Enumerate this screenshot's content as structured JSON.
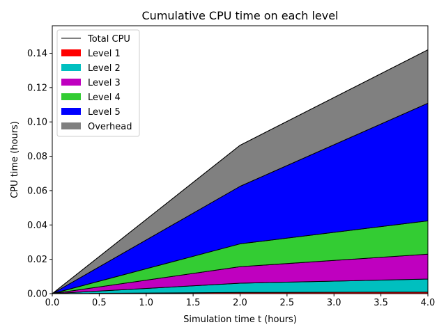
{
  "chart_data": {
    "type": "area",
    "stacked": true,
    "title": "Cumulative CPU time on each level",
    "xlabel": "Simulation time t (hours)",
    "ylabel": "CPU time (hours)",
    "xlim": [
      0,
      4
    ],
    "ylim": [
      0,
      0.156
    ],
    "xticks": [
      "0.0",
      "0.5",
      "1.0",
      "1.5",
      "2.0",
      "2.5",
      "3.0",
      "3.5",
      "4.0"
    ],
    "yticks": [
      "0.00",
      "0.02",
      "0.04",
      "0.06",
      "0.08",
      "0.10",
      "0.12",
      "0.14"
    ],
    "grid": false,
    "legend_position": "top-left",
    "x": [
      0,
      2,
      4
    ],
    "series": [
      {
        "name": "Level 1",
        "color": "#ff0000",
        "values": [
          0,
          0.0007,
          0.0009
        ]
      },
      {
        "name": "Level 2",
        "color": "#00bfbf",
        "values": [
          0,
          0.0054,
          0.0076
        ]
      },
      {
        "name": "Level 3",
        "color": "#bf00bf",
        "values": [
          0,
          0.0096,
          0.0145
        ]
      },
      {
        "name": "Level 4",
        "color": "#33cc33",
        "values": [
          0,
          0.0133,
          0.0194
        ]
      },
      {
        "name": "Level 5",
        "color": "#0000ff",
        "values": [
          0,
          0.0335,
          0.0685
        ]
      },
      {
        "name": "Overhead",
        "color": "#808080",
        "values": [
          0,
          0.0239,
          0.0311
        ]
      }
    ],
    "total": {
      "name": "Total CPU",
      "color": "#000000",
      "values": [
        0,
        0.0864,
        0.142
      ]
    }
  }
}
